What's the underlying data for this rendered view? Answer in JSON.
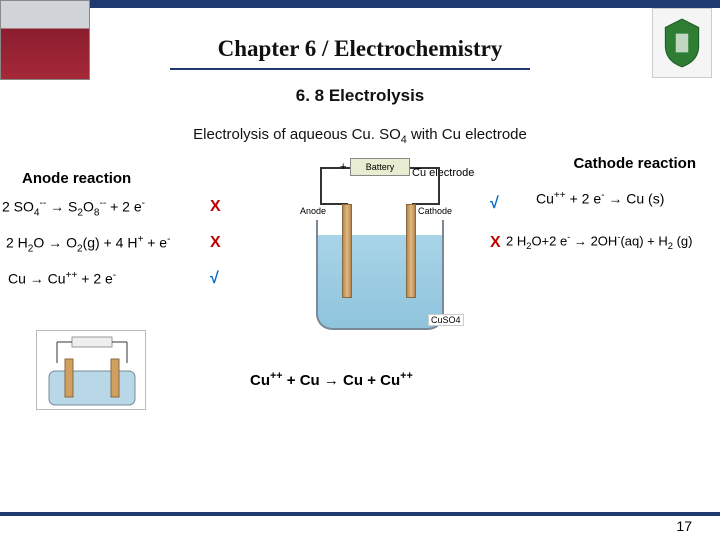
{
  "chapter_title": "Chapter 6 / Electrochemistry",
  "section_title": "6. 8 Electrolysis",
  "subtitle_pre": "Electrolysis of aqueous Cu. SO",
  "subtitle_sub": "4",
  "subtitle_post": " with Cu electrode",
  "anode_heading": "Anode reaction",
  "cathode_heading": "Cathode reaction",
  "cu_elec_label": "Cu electrode",
  "anode_rxn1_html": "2 SO<sub>4</sub><sup>--</sup> → S<sub>2</sub>O<sub>8</sub><sup>--</sup> + 2 e<sup>-</sup>",
  "anode_rxn2_html": "2 H<sub>2</sub>O → O<sub>2</sub>(g) + 4 H<sup>+</sup> + e<sup>-</sup>",
  "anode_rxn3_html": "Cu → Cu<sup>++</sup> + 2 e<sup>-</sup>",
  "cathode_rxn1_html": "Cu<sup>++</sup> + 2 e<sup>-</sup> → Cu (s)",
  "cathode_rxn2_html": "2 H<sub>2</sub>O+2 e<sup>-</sup> → 2OH<sup>-</sup>(aq) + H<sub>2</sub> (g)",
  "net_rxn_html": "Cu<sup>++</sup> + Cu → Cu + Cu<sup>++</sup>",
  "mark_x": "Х",
  "mark_check": "√",
  "battery_label": "Battery",
  "anode_diag_label": "Anode",
  "cathode_diag_label": "Cathode",
  "cuso4_label": "CuSO4",
  "page_number": "17",
  "colors": {
    "bar": "#1f3a6e",
    "x_mark": "#c00000",
    "check_mark": "#0066cc",
    "solution": "#a8d4e8",
    "electrode": "#d0a060"
  }
}
